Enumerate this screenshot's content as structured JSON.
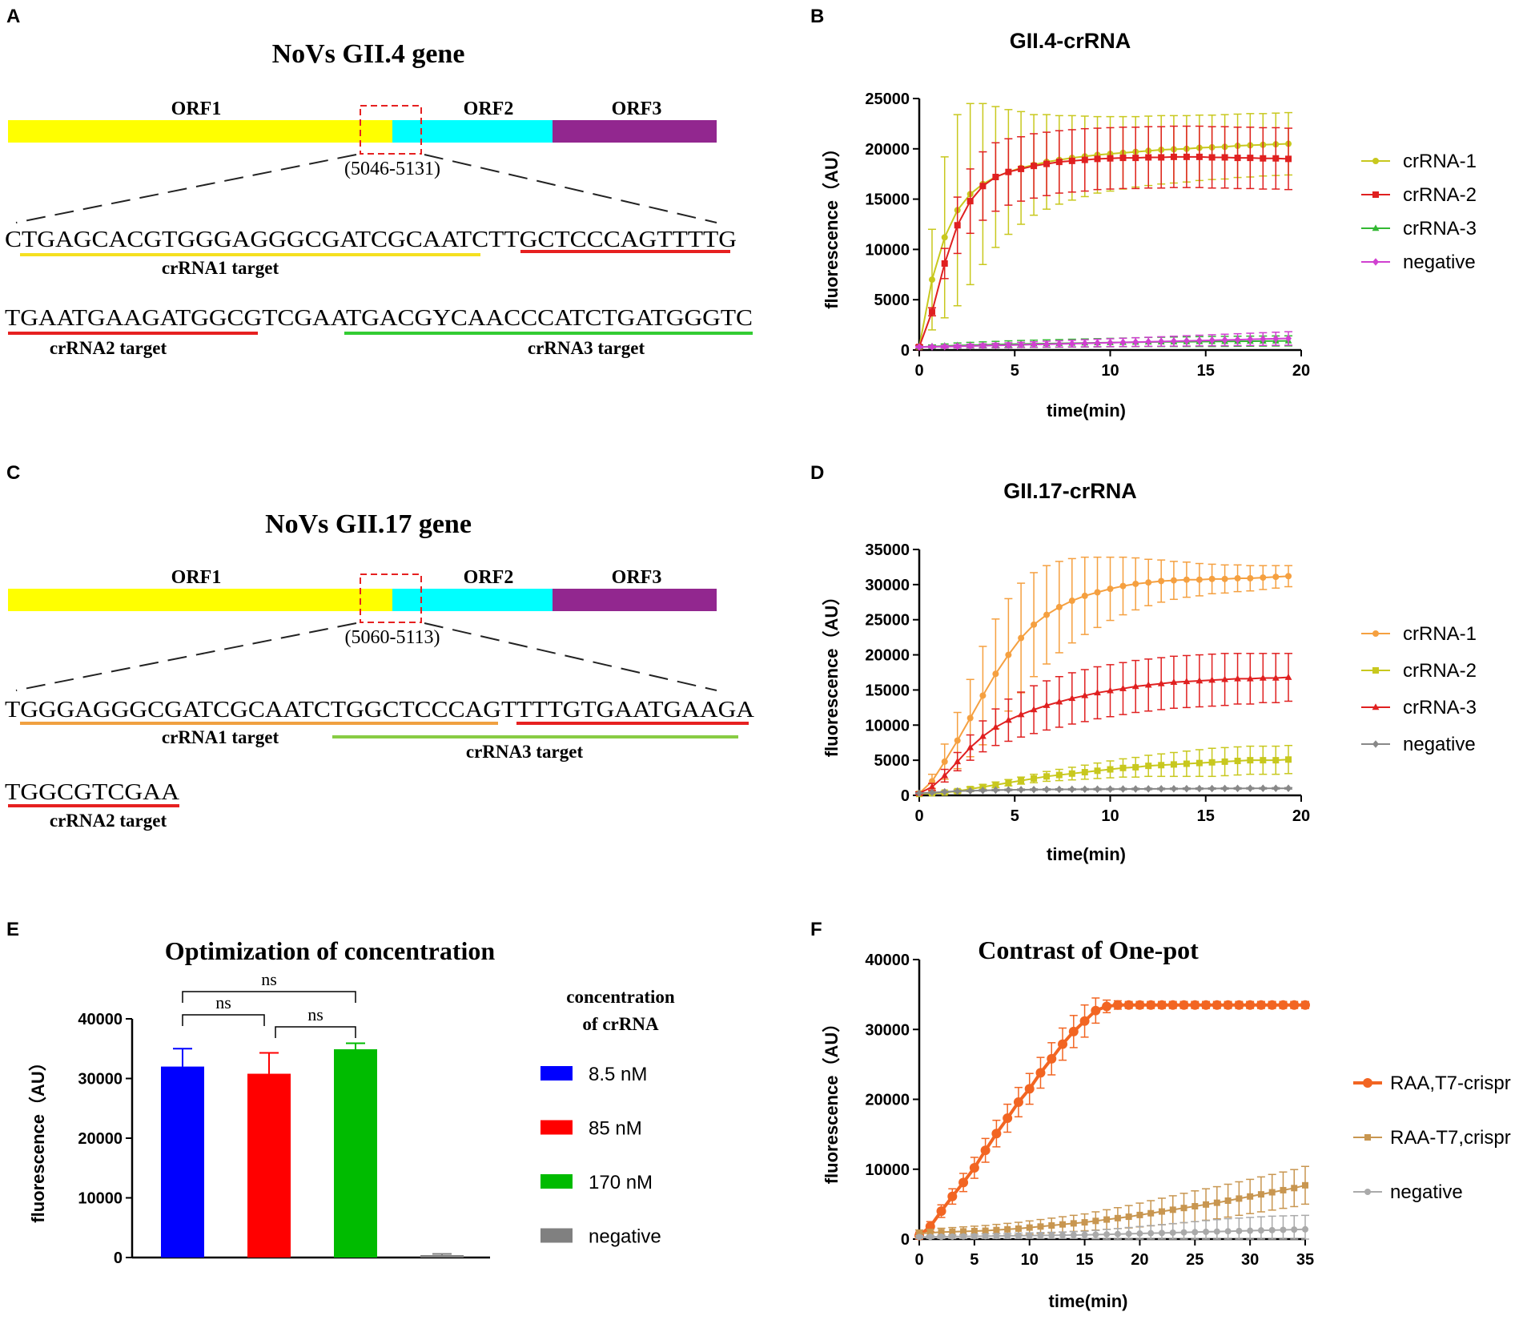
{
  "panel_labels": {
    "a": "A",
    "b": "B",
    "c": "C",
    "d": "D",
    "e": "E",
    "f": "F"
  },
  "gene_a": {
    "title": "NoVs GII.4 gene",
    "orf1": "ORF1",
    "orf2": "ORF2",
    "orf3": "ORF3",
    "region": "(5046-5131)",
    "seq1": "CTGAGCACGTGGGAGGGCGATCGCAATCTTGCTCCCAGTTTTG",
    "seq2": "TGAATGAAGATGGCGTCGAATGACGYCAACCCATCTGATGGGTC",
    "lab1": "crRNA1 target",
    "lab2": "crRNA2 target",
    "lab3": "crRNA3 target"
  },
  "gene_c": {
    "title": "NoVs GII.17 gene",
    "orf1": "ORF1",
    "orf2": "ORF2",
    "orf3": "ORF3",
    "region": "(5060-5113)",
    "seq1": "TGGGAGGGCGATCGCAATCTGGCTCCCAGTTTTGTGAATGAAGA",
    "seq2": "TGGCGTCGAA",
    "lab1": "crRNA1 target",
    "lab3": "crRNA3 target",
    "lab2": "crRNA2 target"
  },
  "colors": {
    "yellow": "#ffff00",
    "cyan": "#00ffff",
    "purple": "#92278f",
    "red": "#e62020",
    "green": "#33cc33",
    "orange": "#f0a040",
    "lightgreen": "#88cc44"
  },
  "chart_data": [
    {
      "id": "B",
      "type": "line",
      "title": "GII.4-crRNA",
      "xlabel": "time(min)",
      "ylabel": "fluorescence（AU）",
      "xlim": [
        0,
        20
      ],
      "ylim": [
        0,
        25000
      ],
      "xticks": [
        0,
        5,
        10,
        15,
        20
      ],
      "yticks": [
        0,
        5000,
        10000,
        15000,
        20000,
        25000
      ],
      "x": [
        0,
        0.67,
        1.33,
        2,
        2.67,
        3.33,
        4,
        4.67,
        5.33,
        6,
        6.67,
        7.33,
        8,
        8.67,
        9.33,
        10,
        10.67,
        11.33,
        12,
        12.67,
        13.33,
        14,
        14.67,
        15.33,
        16,
        16.67,
        17.33,
        18,
        18.67,
        19.33
      ],
      "series": [
        {
          "name": "crRNA-1",
          "color": "#c8c81e",
          "marker": "circle",
          "values": [
            300,
            7000,
            11200,
            13900,
            15500,
            16500,
            17200,
            17700,
            18100,
            18400,
            18700,
            18900,
            19100,
            19250,
            19400,
            19500,
            19600,
            19700,
            19800,
            19900,
            19950,
            20000,
            20100,
            20150,
            20200,
            20300,
            20350,
            20400,
            20450,
            20500
          ],
          "err": [
            200,
            5000,
            8000,
            9500,
            9000,
            8000,
            7000,
            6200,
            5600,
            5000,
            4700,
            4400,
            4200,
            4000,
            3800,
            3700,
            3600,
            3500,
            3450,
            3400,
            3350,
            3300,
            3250,
            3200,
            3200,
            3150,
            3150,
            3100,
            3100,
            3100
          ]
        },
        {
          "name": "crRNA-2",
          "color": "#e02020",
          "marker": "square",
          "values": [
            300,
            3800,
            8600,
            12400,
            14800,
            16300,
            17200,
            17700,
            18000,
            18300,
            18500,
            18700,
            18800,
            18900,
            19000,
            19050,
            19100,
            19100,
            19150,
            19150,
            19200,
            19200,
            19200,
            19150,
            19150,
            19100,
            19100,
            19050,
            19050,
            19000
          ],
          "err": [
            200,
            400,
            1500,
            2800,
            3200,
            3400,
            3400,
            3300,
            3200,
            3200,
            3150,
            3100,
            3100,
            3100,
            3050,
            3050,
            3050,
            3050,
            3050,
            3050,
            3050,
            3050,
            3050,
            3050,
            3050,
            3050,
            3050,
            3050,
            3050,
            3050
          ]
        },
        {
          "name": "crRNA-3",
          "color": "#33b833",
          "marker": "triangle",
          "values": [
            300,
            350,
            400,
            450,
            480,
            510,
            540,
            570,
            600,
            620,
            640,
            660,
            680,
            700,
            720,
            740,
            760,
            780,
            800,
            810,
            820,
            830,
            840,
            850,
            860,
            870,
            880,
            890,
            900,
            910
          ],
          "err": [
            100,
            150,
            200,
            250,
            280,
            300,
            320,
            340,
            350,
            360,
            370,
            380,
            390,
            400,
            410,
            420,
            430,
            440,
            450,
            460,
            470,
            480,
            490,
            500,
            500,
            500,
            500,
            500,
            500,
            500
          ]
        },
        {
          "name": "negative",
          "color": "#d040d0",
          "marker": "diamond",
          "values": [
            300,
            320,
            340,
            370,
            400,
            430,
            460,
            490,
            520,
            550,
            580,
            610,
            640,
            670,
            700,
            730,
            760,
            790,
            820,
            850,
            880,
            910,
            940,
            970,
            1000,
            1030,
            1060,
            1090,
            1120,
            1150
          ],
          "err": [
            80,
            100,
            120,
            150,
            170,
            190,
            210,
            230,
            250,
            270,
            290,
            310,
            330,
            350,
            370,
            390,
            410,
            430,
            450,
            470,
            490,
            510,
            530,
            550,
            570,
            590,
            610,
            630,
            650,
            670
          ]
        }
      ]
    },
    {
      "id": "D",
      "type": "line",
      "title": "GII.17-crRNA",
      "xlabel": "time(min)",
      "ylabel": "fluorescence（AU）",
      "xlim": [
        0,
        20
      ],
      "ylim": [
        0,
        35000
      ],
      "xticks": [
        0,
        5,
        10,
        15,
        20
      ],
      "yticks": [
        0,
        5000,
        10000,
        15000,
        20000,
        25000,
        30000,
        35000
      ],
      "x": [
        0,
        0.67,
        1.33,
        2,
        2.67,
        3.33,
        4,
        4.67,
        5.33,
        6,
        6.67,
        7.33,
        8,
        8.67,
        9.33,
        10,
        10.67,
        11.33,
        12,
        12.67,
        13.33,
        14,
        14.67,
        15.33,
        16,
        16.67,
        17.33,
        18,
        18.67,
        19.33
      ],
      "series": [
        {
          "name": "crRNA-1",
          "color": "#f5a040",
          "marker": "circle",
          "values": [
            300,
            2000,
            4800,
            7800,
            11000,
            14200,
            17300,
            20000,
            22400,
            24300,
            25700,
            26800,
            27700,
            28400,
            28900,
            29400,
            29800,
            30100,
            30300,
            30500,
            30600,
            30700,
            30700,
            30800,
            30800,
            30900,
            30900,
            31000,
            31100,
            31200
          ],
          "err": [
            200,
            1000,
            2500,
            4000,
            5500,
            7000,
            7800,
            8000,
            7800,
            7400,
            7000,
            6500,
            6000,
            5500,
            5000,
            4500,
            4100,
            3700,
            3300,
            3000,
            2700,
            2500,
            2300,
            2100,
            2000,
            1900,
            1800,
            1700,
            1600,
            1500
          ]
        },
        {
          "name": "crRNA-2",
          "color": "#c8c81e",
          "marker": "square",
          "values": [
            200,
            300,
            400,
            600,
            900,
            1200,
            1500,
            1800,
            2100,
            2400,
            2700,
            2900,
            3100,
            3300,
            3500,
            3700,
            3900,
            4000,
            4200,
            4300,
            4400,
            4500,
            4600,
            4700,
            4800,
            4900,
            5000,
            5000,
            5000,
            5100
          ],
          "err": [
            100,
            150,
            200,
            250,
            300,
            350,
            400,
            450,
            500,
            600,
            700,
            800,
            900,
            1000,
            1100,
            1200,
            1300,
            1400,
            1500,
            1600,
            1700,
            1800,
            1900,
            2000,
            2000,
            2000,
            2000,
            2000,
            2000,
            2000
          ]
        },
        {
          "name": "crRNA-3",
          "color": "#e02020",
          "marker": "triangle",
          "values": [
            300,
            1200,
            2800,
            4800,
            6800,
            8400,
            9700,
            10700,
            11500,
            12200,
            12800,
            13300,
            13800,
            14200,
            14600,
            14900,
            15200,
            15500,
            15700,
            15900,
            16100,
            16200,
            16300,
            16400,
            16500,
            16600,
            16600,
            16700,
            16700,
            16800
          ],
          "err": [
            200,
            500,
            900,
            1300,
            1800,
            2200,
            2600,
            3000,
            3200,
            3400,
            3500,
            3600,
            3650,
            3700,
            3700,
            3700,
            3700,
            3700,
            3700,
            3700,
            3700,
            3700,
            3700,
            3700,
            3700,
            3600,
            3600,
            3500,
            3500,
            3400
          ]
        },
        {
          "name": "negative",
          "color": "#888888",
          "marker": "diamond",
          "values": [
            300,
            400,
            500,
            600,
            650,
            700,
            750,
            780,
            800,
            820,
            840,
            850,
            860,
            870,
            880,
            890,
            900,
            910,
            920,
            930,
            940,
            950,
            960,
            970,
            980,
            990,
            1000,
            1000,
            1000,
            1000
          ],
          "err": [
            50,
            60,
            70,
            80,
            90,
            100,
            100,
            100,
            100,
            100,
            100,
            100,
            100,
            100,
            100,
            100,
            100,
            100,
            100,
            100,
            100,
            100,
            100,
            100,
            100,
            100,
            100,
            100,
            100,
            100
          ]
        }
      ]
    },
    {
      "id": "E",
      "type": "bar",
      "title": "Optimization of concentration",
      "ylabel": "fluorescence（AU）",
      "ylim": [
        0,
        40000
      ],
      "yticks": [
        0,
        10000,
        20000,
        30000,
        40000
      ],
      "legend_title": [
        "concentration",
        "of crRNA"
      ],
      "categories": [
        "8.5 nM",
        "85 nM",
        "170 nM",
        "negative"
      ],
      "values": [
        32000,
        30800,
        34900,
        400
      ],
      "err": [
        3000,
        3500,
        1000,
        200
      ],
      "colors": [
        "#0000ff",
        "#ff0000",
        "#00bb00",
        "#808080"
      ],
      "significance": [
        {
          "from": 0,
          "to": 1,
          "label": "ns"
        },
        {
          "from": 1,
          "to": 2,
          "label": "ns"
        },
        {
          "from": 0,
          "to": 2,
          "label": "ns"
        }
      ]
    },
    {
      "id": "F",
      "type": "line",
      "title": "Contrast of One-pot",
      "xlabel": "time(min)",
      "ylabel": "fluorescence（AU）",
      "xlim": [
        0,
        35
      ],
      "ylim": [
        0,
        40000
      ],
      "xticks": [
        0,
        5,
        10,
        15,
        20,
        25,
        30,
        35
      ],
      "yticks": [
        0,
        10000,
        20000,
        30000,
        40000
      ],
      "x": [
        0,
        1,
        2,
        3,
        4,
        5,
        6,
        7,
        8,
        9,
        10,
        11,
        12,
        13,
        14,
        15,
        16,
        17,
        18,
        19,
        20,
        21,
        22,
        23,
        24,
        25,
        26,
        27,
        28,
        29,
        30,
        31,
        32,
        33,
        34,
        35
      ],
      "series": [
        {
          "name": "RAA,T7-crispr",
          "color": "#f26522",
          "marker": "circle",
          "bold": true,
          "values": [
            500,
            1800,
            4000,
            6100,
            8100,
            10200,
            12700,
            15100,
            17300,
            19600,
            21500,
            23800,
            25800,
            27900,
            29700,
            31200,
            32700,
            33300,
            33500,
            33500,
            33500,
            33500,
            33500,
            33500,
            33500,
            33500,
            33500,
            33500,
            33500,
            33500,
            33500,
            33500,
            33500,
            33500,
            33500,
            33500
          ],
          "err": [
            500,
            700,
            900,
            1100,
            1300,
            1500,
            1700,
            1900,
            2000,
            2100,
            2200,
            2200,
            2300,
            2300,
            2300,
            2300,
            1800,
            900,
            600,
            500,
            500,
            500,
            500,
            500,
            500,
            500,
            500,
            500,
            500,
            500,
            500,
            500,
            500,
            500,
            500,
            500
          ]
        },
        {
          "name": "RAA-T7,crispr",
          "color": "#c89650",
          "marker": "square",
          "values": [
            800,
            900,
            1000,
            1050,
            1100,
            1150,
            1200,
            1300,
            1400,
            1500,
            1650,
            1800,
            1950,
            2100,
            2250,
            2400,
            2600,
            2800,
            3000,
            3200,
            3450,
            3700,
            3950,
            4200,
            4450,
            4700,
            4950,
            5200,
            5500,
            5800,
            6100,
            6400,
            6700,
            7000,
            7300,
            7700
          ],
          "err": [
            500,
            500,
            550,
            600,
            650,
            700,
            750,
            800,
            850,
            900,
            950,
            1000,
            1050,
            1100,
            1150,
            1200,
            1300,
            1400,
            1500,
            1600,
            1700,
            1800,
            1900,
            2000,
            2100,
            2200,
            2250,
            2300,
            2350,
            2400,
            2450,
            2500,
            2550,
            2600,
            2650,
            2700
          ]
        },
        {
          "name": "negative",
          "color": "#aaaaaa",
          "marker": "circle",
          "values": [
            300,
            320,
            340,
            360,
            380,
            400,
            420,
            440,
            460,
            480,
            500,
            520,
            540,
            560,
            580,
            600,
            640,
            680,
            720,
            760,
            800,
            840,
            880,
            920,
            960,
            1000,
            1040,
            1080,
            1120,
            1160,
            1200,
            1240,
            1280,
            1320,
            1360,
            1400
          ],
          "err": [
            200,
            220,
            240,
            260,
            280,
            300,
            320,
            340,
            360,
            380,
            400,
            420,
            440,
            460,
            480,
            500,
            600,
            700,
            800,
            900,
            1000,
            1100,
            1200,
            1300,
            1400,
            1500,
            1600,
            1700,
            1800,
            1850,
            1900,
            1950,
            2000,
            2000,
            2000,
            2000
          ]
        }
      ]
    }
  ]
}
